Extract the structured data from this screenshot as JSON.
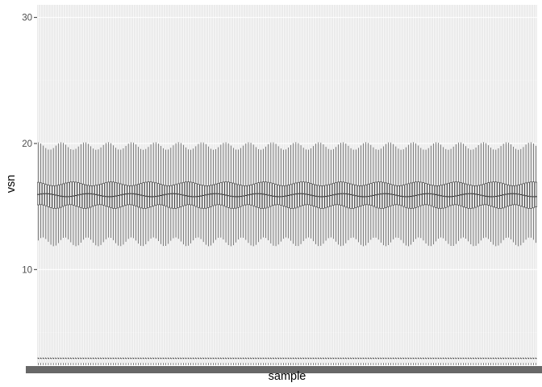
{
  "chart_data": {
    "type": "boxplot",
    "title": "",
    "xlabel": "sample",
    "ylabel": "vsn",
    "ylim": [
      2.6,
      31
    ],
    "yticks": [
      10,
      20,
      30
    ],
    "ytick_labels": [
      "10",
      "20",
      "30"
    ],
    "x_tick_labels_note": "sample names along the x axis are overplotted and illegible",
    "n_samples": 200,
    "summary_typical": {
      "outlier_min": 3.0,
      "whisker_low": 12.2,
      "q1": 15.0,
      "median": 15.9,
      "q3": 16.8,
      "whisker_high": 19.8
    },
    "grid": true,
    "legend": "none"
  },
  "colors": {
    "panel_background": "#ebebeb",
    "grid_major": "#ffffff",
    "grid_minor": "#f2f2f2",
    "box_stroke": "#333333",
    "box_fill": "#ffffff",
    "axis_text": "#4d4d4d"
  }
}
